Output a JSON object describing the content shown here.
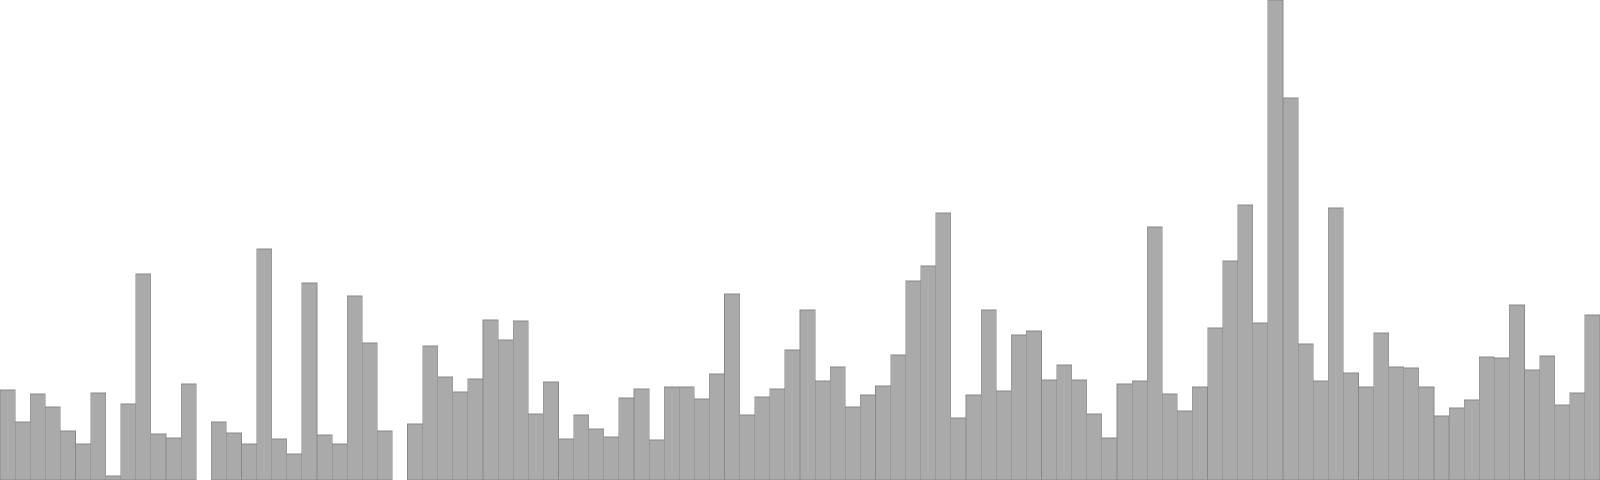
{
  "chart_data": {
    "type": "bar",
    "title": "",
    "xlabel": "",
    "ylabel": "",
    "ylim": [
      0,
      480
    ],
    "grid": false,
    "legend": "none",
    "bar_color": "#aaaaaa",
    "edge_color": "#888888",
    "values": [
      90,
      58,
      86,
      73,
      49,
      36,
      87,
      4,
      76,
      206,
      46,
      42,
      96,
      0,
      58,
      47,
      36,
      231,
      41,
      26,
      197,
      45,
      36,
      184,
      137,
      49,
      0,
      56,
      134,
      103,
      88,
      101,
      160,
      140,
      159,
      66,
      98,
      41,
      65,
      51,
      43,
      82,
      91,
      40,
      93,
      93,
      81,
      106,
      186,
      65,
      83,
      91,
      130,
      170,
      99,
      113,
      73,
      85,
      94,
      125,
      199,
      214,
      267,
      62,
      85,
      170,
      89,
      145,
      149,
      100,
      115,
      100,
      66,
      42,
      96,
      99,
      253,
      86,
      69,
      93,
      152,
      219,
      275,
      157,
      480,
      382,
      136,
      99,
      272,
      107,
      93,
      147,
      113,
      112,
      93,
      64,
      72,
      80,
      123,
      122,
      175,
      110,
      124,
      75,
      87,
      165
    ]
  }
}
